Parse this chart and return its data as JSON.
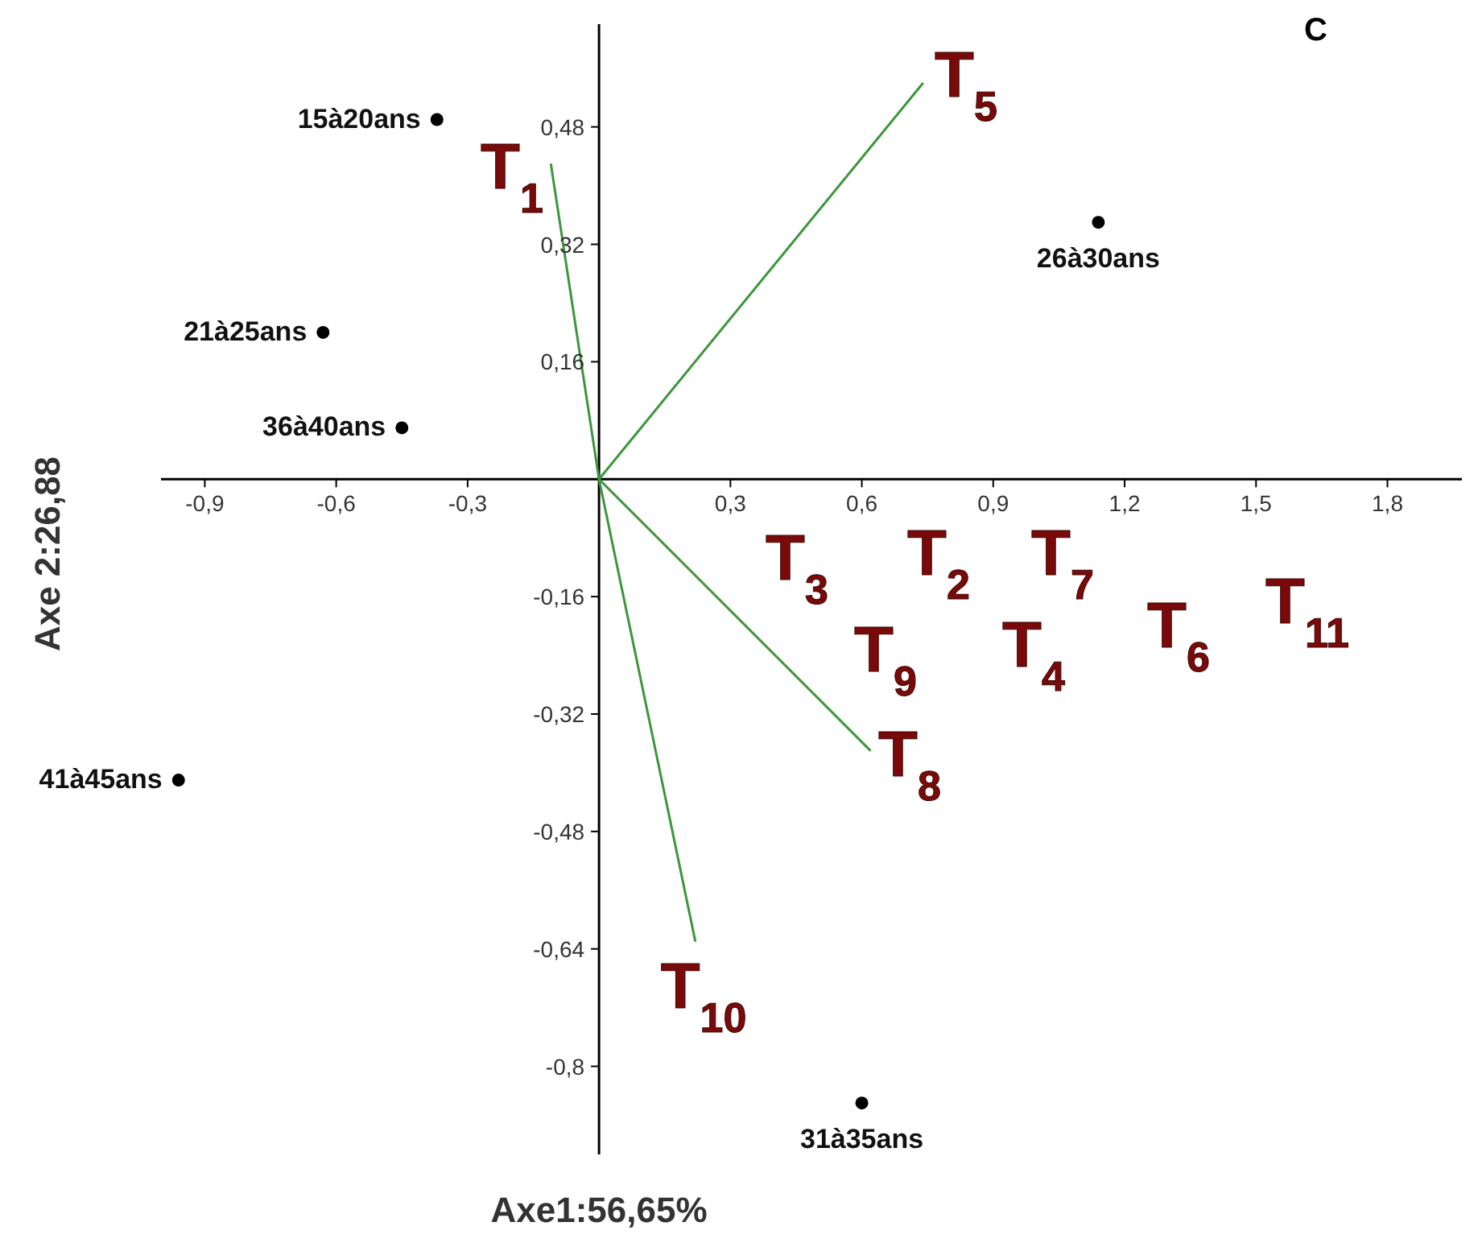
{
  "chart_data": {
    "type": "scatter",
    "title": "C",
    "xlabel": "Axe1:56,65%",
    "ylabel": "Axe 2:26,88",
    "xlim": [
      -1.0,
      1.97
    ],
    "ylim": [
      -0.92,
      0.62
    ],
    "xticks": [
      {
        "value": -0.9,
        "label": "-0,9"
      },
      {
        "value": -0.6,
        "label": "-0,6"
      },
      {
        "value": -0.3,
        "label": "-0,3"
      },
      {
        "value": 0.3,
        "label": "0,3"
      },
      {
        "value": 0.6,
        "label": "0,6"
      },
      {
        "value": 0.9,
        "label": "0,9"
      },
      {
        "value": 1.2,
        "label": "1,2"
      },
      {
        "value": 1.5,
        "label": "1,5"
      },
      {
        "value": 1.8,
        "label": "1,8"
      }
    ],
    "yticks": [
      {
        "value": 0.48,
        "label": "0,48"
      },
      {
        "value": 0.32,
        "label": "0,32"
      },
      {
        "value": 0.16,
        "label": "0,16"
      },
      {
        "value": -0.16,
        "label": "-0,16"
      },
      {
        "value": -0.32,
        "label": "-0,32"
      },
      {
        "value": -0.48,
        "label": "-0,48"
      },
      {
        "value": -0.64,
        "label": "-0,64"
      },
      {
        "value": -0.8,
        "label": "-0,8"
      }
    ],
    "series": [
      {
        "type": "scatter",
        "marker": "circle",
        "color": "#000000",
        "x": [
          -0.37,
          -0.63,
          -0.45,
          -0.96,
          1.14,
          0.6
        ],
        "values": [
          0.49,
          0.2,
          0.07,
          -0.41,
          0.35,
          -0.85
        ],
        "value_labels": [
          "15à20ans",
          "21à25ans",
          "36à40ans",
          "41à45ans",
          "26à30ans",
          "31à35ans"
        ]
      },
      {
        "type": "line",
        "marker": "none",
        "color": "#3c963c",
        "x": [
          -0.11,
          0,
          0.22
        ],
        "values": [
          0.43,
          0,
          -0.63
        ]
      },
      {
        "type": "line",
        "marker": "none",
        "color": "#3c963c",
        "x": [
          0.74,
          0,
          0.62
        ],
        "values": [
          0.54,
          0,
          -0.37
        ]
      }
    ],
    "annotations": [
      "T$_{1}$",
      "T$_{5}$",
      "T$_{3}$",
      "T$_{2}$",
      "T$_{7}$",
      "T$_{9}$",
      "T$_{4}$",
      "T$_{6}$",
      "T$_{11}$",
      "T$_{8}$",
      "T$_{10}$"
    ]
  }
}
